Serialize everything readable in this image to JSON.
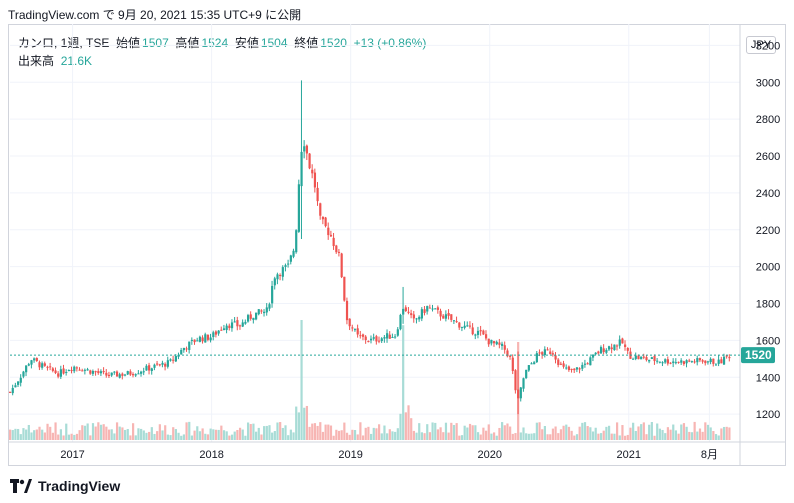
{
  "header": {
    "title": "TradingView.com で 9月 20, 2021 15:35 UTC+9 に公開"
  },
  "legend": {
    "symbol": "カンロ, 1週, TSE",
    "open_label": "始値",
    "open": "1507",
    "high_label": "高値",
    "high": "1524",
    "low_label": "安値",
    "low": "1504",
    "close_label": "終値",
    "close": "1520",
    "change": "+13 (+0.86%)",
    "volume_label": "出来高",
    "volume": "21.6K"
  },
  "currency": "JPY",
  "price_tag": "1520",
  "footer": {
    "brand": "TradingView"
  },
  "colors": {
    "up": "#26a69a",
    "down": "#ef5350",
    "vol_up": "#a8dcd6",
    "vol_down": "#f7b5b3",
    "grid": "#f0f3fa",
    "last": "#26a69a"
  },
  "chart_data": {
    "type": "candlestick",
    "interval": "1 week",
    "y_axis": {
      "ticks": [
        1200,
        1400,
        1600,
        1800,
        2000,
        2200,
        2400,
        2600,
        2800,
        3000,
        3200
      ],
      "range": [
        1060,
        3240
      ],
      "side": "right"
    },
    "x_axis": {
      "tick_labels": [
        "2017",
        "2018",
        "2019",
        "2020",
        "2021",
        "8月"
      ],
      "tick_dates": [
        2017.0,
        2018.0,
        2019.0,
        2020.0,
        2021.0,
        2021.58
      ]
    },
    "close_path": [
      {
        "t": 2016.55,
        "c": 1320
      },
      {
        "t": 2016.62,
        "c": 1400
      },
      {
        "t": 2016.7,
        "c": 1500
      },
      {
        "t": 2016.8,
        "c": 1450
      },
      {
        "t": 2016.9,
        "c": 1420
      },
      {
        "t": 2017.0,
        "c": 1460
      },
      {
        "t": 2017.1,
        "c": 1440
      },
      {
        "t": 2017.25,
        "c": 1410
      },
      {
        "t": 2017.4,
        "c": 1420
      },
      {
        "t": 2017.55,
        "c": 1450
      },
      {
        "t": 2017.7,
        "c": 1480
      },
      {
        "t": 2017.8,
        "c": 1560
      },
      {
        "t": 2017.9,
        "c": 1610
      },
      {
        "t": 2018.0,
        "c": 1620
      },
      {
        "t": 2018.1,
        "c": 1690
      },
      {
        "t": 2018.2,
        "c": 1680
      },
      {
        "t": 2018.3,
        "c": 1740
      },
      {
        "t": 2018.4,
        "c": 1760
      },
      {
        "t": 2018.45,
        "c": 1950
      },
      {
        "t": 2018.5,
        "c": 1980
      },
      {
        "t": 2018.55,
        "c": 2000
      },
      {
        "t": 2018.6,
        "c": 2120
      },
      {
        "t": 2018.64,
        "c": 2620
      },
      {
        "t": 2018.66,
        "c": 2700
      },
      {
        "t": 2018.7,
        "c": 2560
      },
      {
        "t": 2018.74,
        "c": 2450
      },
      {
        "t": 2018.78,
        "c": 2250
      },
      {
        "t": 2018.85,
        "c": 2180
      },
      {
        "t": 2018.92,
        "c": 2050
      },
      {
        "t": 2018.97,
        "c": 1720
      },
      {
        "t": 2019.05,
        "c": 1620
      },
      {
        "t": 2019.15,
        "c": 1600
      },
      {
        "t": 2019.25,
        "c": 1620
      },
      {
        "t": 2019.32,
        "c": 1630
      },
      {
        "t": 2019.38,
        "c": 1790
      },
      {
        "t": 2019.45,
        "c": 1700
      },
      {
        "t": 2019.55,
        "c": 1780
      },
      {
        "t": 2019.65,
        "c": 1740
      },
      {
        "t": 2019.75,
        "c": 1700
      },
      {
        "t": 2019.85,
        "c": 1660
      },
      {
        "t": 2019.93,
        "c": 1640
      },
      {
        "t": 2020.0,
        "c": 1590
      },
      {
        "t": 2020.1,
        "c": 1560
      },
      {
        "t": 2020.15,
        "c": 1500
      },
      {
        "t": 2020.2,
        "c": 1260
      },
      {
        "t": 2020.25,
        "c": 1420
      },
      {
        "t": 2020.35,
        "c": 1530
      },
      {
        "t": 2020.45,
        "c": 1540
      },
      {
        "t": 2020.52,
        "c": 1450
      },
      {
        "t": 2020.6,
        "c": 1430
      },
      {
        "t": 2020.7,
        "c": 1480
      },
      {
        "t": 2020.8,
        "c": 1550
      },
      {
        "t": 2020.88,
        "c": 1570
      },
      {
        "t": 2020.95,
        "c": 1590
      },
      {
        "t": 2021.0,
        "c": 1520
      },
      {
        "t": 2021.1,
        "c": 1500
      },
      {
        "t": 2021.25,
        "c": 1490
      },
      {
        "t": 2021.4,
        "c": 1485
      },
      {
        "t": 2021.55,
        "c": 1490
      },
      {
        "t": 2021.65,
        "c": 1480
      },
      {
        "t": 2021.72,
        "c": 1520
      }
    ],
    "spikes": [
      {
        "t": 2018.64,
        "high": 3010,
        "low": 2150
      },
      {
        "t": 2020.2,
        "high": 1540,
        "low": 1200
      },
      {
        "t": 2019.38,
        "high": 1890,
        "low": 1690
      }
    ],
    "last_close": 1520
  }
}
